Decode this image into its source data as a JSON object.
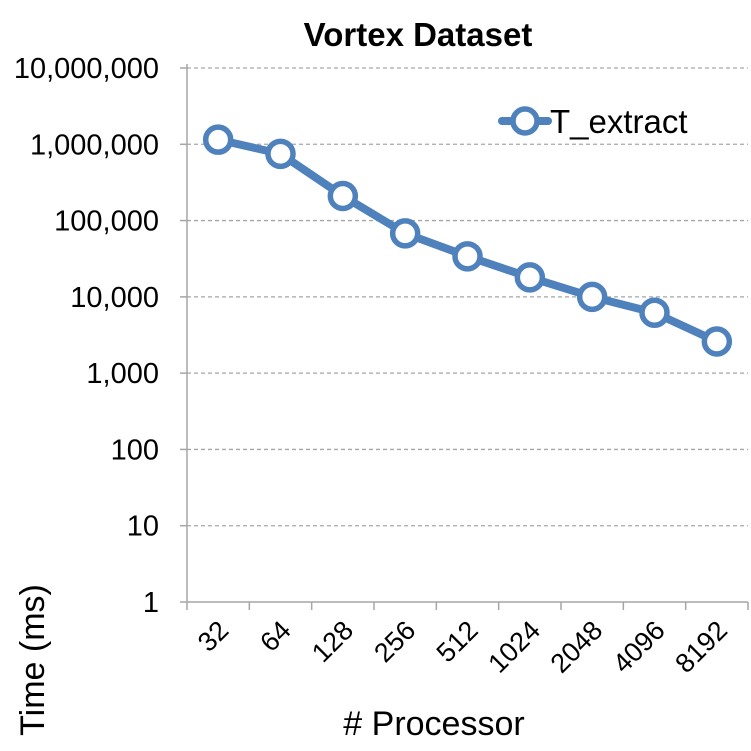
{
  "chart_data": {
    "type": "line",
    "title": "Vortex Dataset",
    "xlabel": "# Processor",
    "ylabel": "Time (ms)",
    "y_scale": "log",
    "ylim": [
      1,
      10000000
    ],
    "y_ticks": [
      "1",
      "10",
      "100",
      "1,000",
      "10,000",
      "100,000",
      "1,000,000",
      "10,000,000"
    ],
    "categories": [
      "32",
      "64",
      "128",
      "256",
      "512",
      "1024",
      "2048",
      "4096",
      "8192"
    ],
    "series": [
      {
        "name": "T_extract",
        "values": [
          1150000,
          750000,
          210000,
          68000,
          34000,
          18000,
          10000,
          6200,
          2600
        ]
      }
    ],
    "grid": "horizontal dashed",
    "legend_position": "top-right",
    "colors": {
      "line": "#4F81BD",
      "marker_fill": "#FFFFFF",
      "grid": "#A6A6A6",
      "axis": "#A6A6A6"
    }
  }
}
